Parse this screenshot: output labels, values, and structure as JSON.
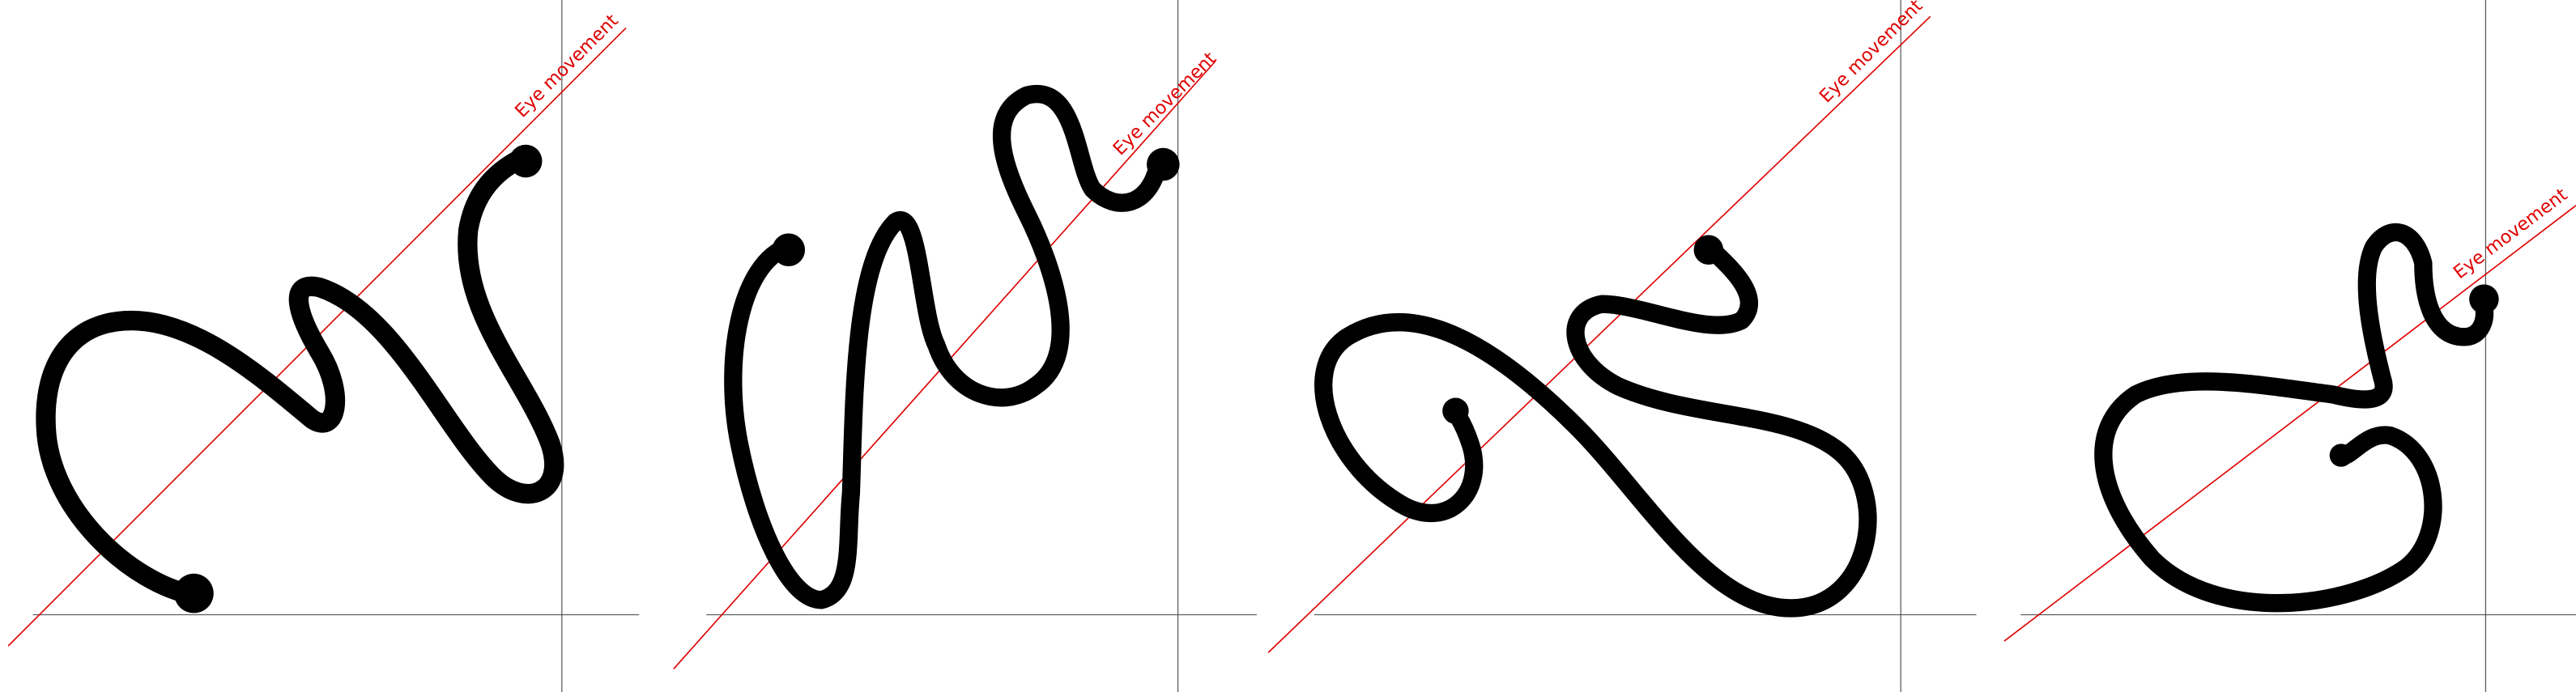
{
  "panels": [
    {
      "label": "Eye movement"
    },
    {
      "label": "Eye movement"
    },
    {
      "label": "Eye movement"
    },
    {
      "label": "Eye movement"
    }
  ]
}
